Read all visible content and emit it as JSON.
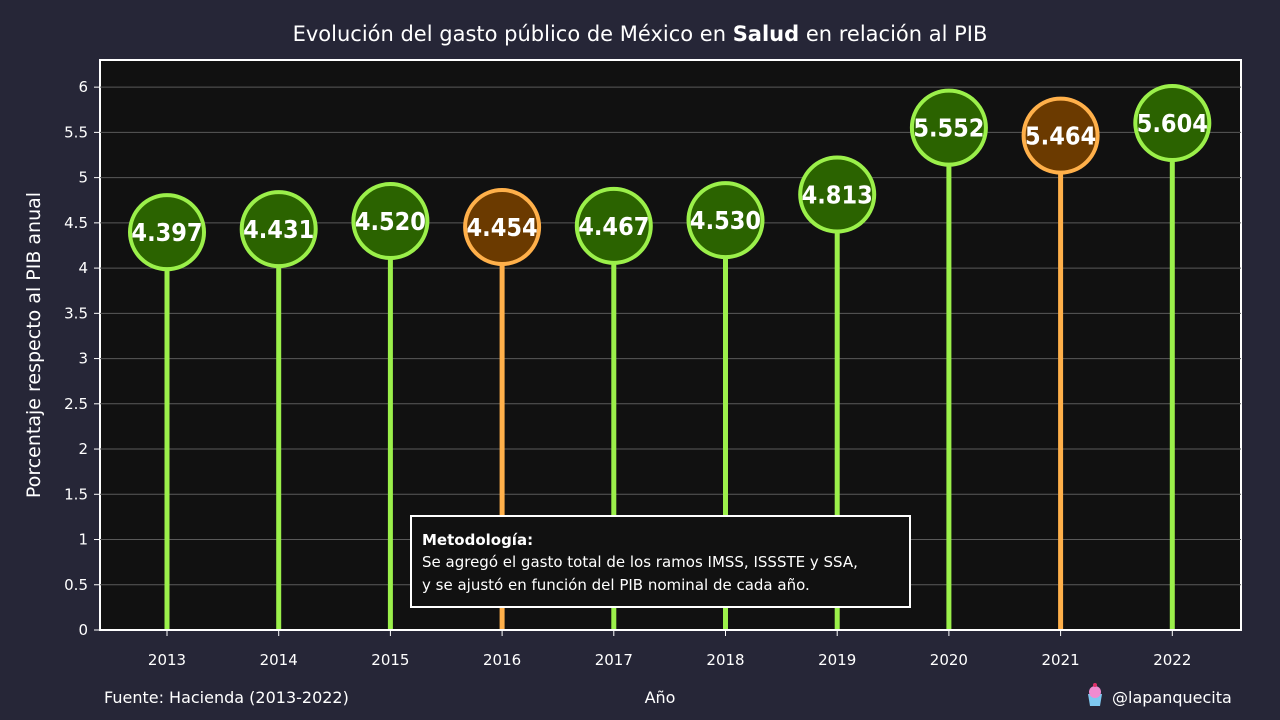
{
  "title": {
    "prefix": "Evolución del gasto público de México en ",
    "bold": "Salud",
    "suffix": " en relación al PIB"
  },
  "footer": {
    "source": "Fuente: Hacienda (2013-2022)",
    "handle": "@lapanquecita"
  },
  "note": {
    "title": "Metodología:",
    "line1": "Se agregó el gasto total de los ramos IMSS, ISSSTE y SSA,",
    "line2": "y se ajustó en función del PIB nominal de cada año."
  },
  "colors": {
    "background": "#262637",
    "plot_background": "#111111",
    "increase_line": "#9bf04a",
    "increase_fill": "#2b6300",
    "decrease_line": "#ffb04a",
    "decrease_fill": "#6b3a00",
    "grid": "#5a5a5a"
  },
  "chart_data": {
    "type": "lollipop",
    "title": "Evolución del gasto público de México en Salud en relación al PIB",
    "xlabel": "Año",
    "ylabel": "Porcentaje respecto al PIB anual",
    "ylim": [
      0,
      6.3
    ],
    "yticks": [
      0,
      0.5,
      1,
      1.5,
      2,
      2.5,
      3,
      3.5,
      4,
      4.5,
      5,
      5.5,
      6
    ],
    "ytick_labels": [
      "0",
      "0.5",
      "1",
      "1.5",
      "2",
      "2.5",
      "3",
      "3.5",
      "4",
      "4.5",
      "5",
      "5.5",
      "6"
    ],
    "grid": true,
    "categories": [
      "2013",
      "2014",
      "2015",
      "2016",
      "2017",
      "2018",
      "2019",
      "2020",
      "2021",
      "2022"
    ],
    "values": [
      4.397,
      4.431,
      4.52,
      4.454,
      4.467,
      4.53,
      4.813,
      5.552,
      5.464,
      5.604
    ],
    "labels": [
      "4.397",
      "4.431",
      "4.520",
      "4.454",
      "4.467",
      "4.530",
      "4.813",
      "5.552",
      "5.464",
      "5.604"
    ],
    "decrease": [
      false,
      false,
      false,
      true,
      false,
      false,
      false,
      false,
      true,
      false
    ]
  }
}
